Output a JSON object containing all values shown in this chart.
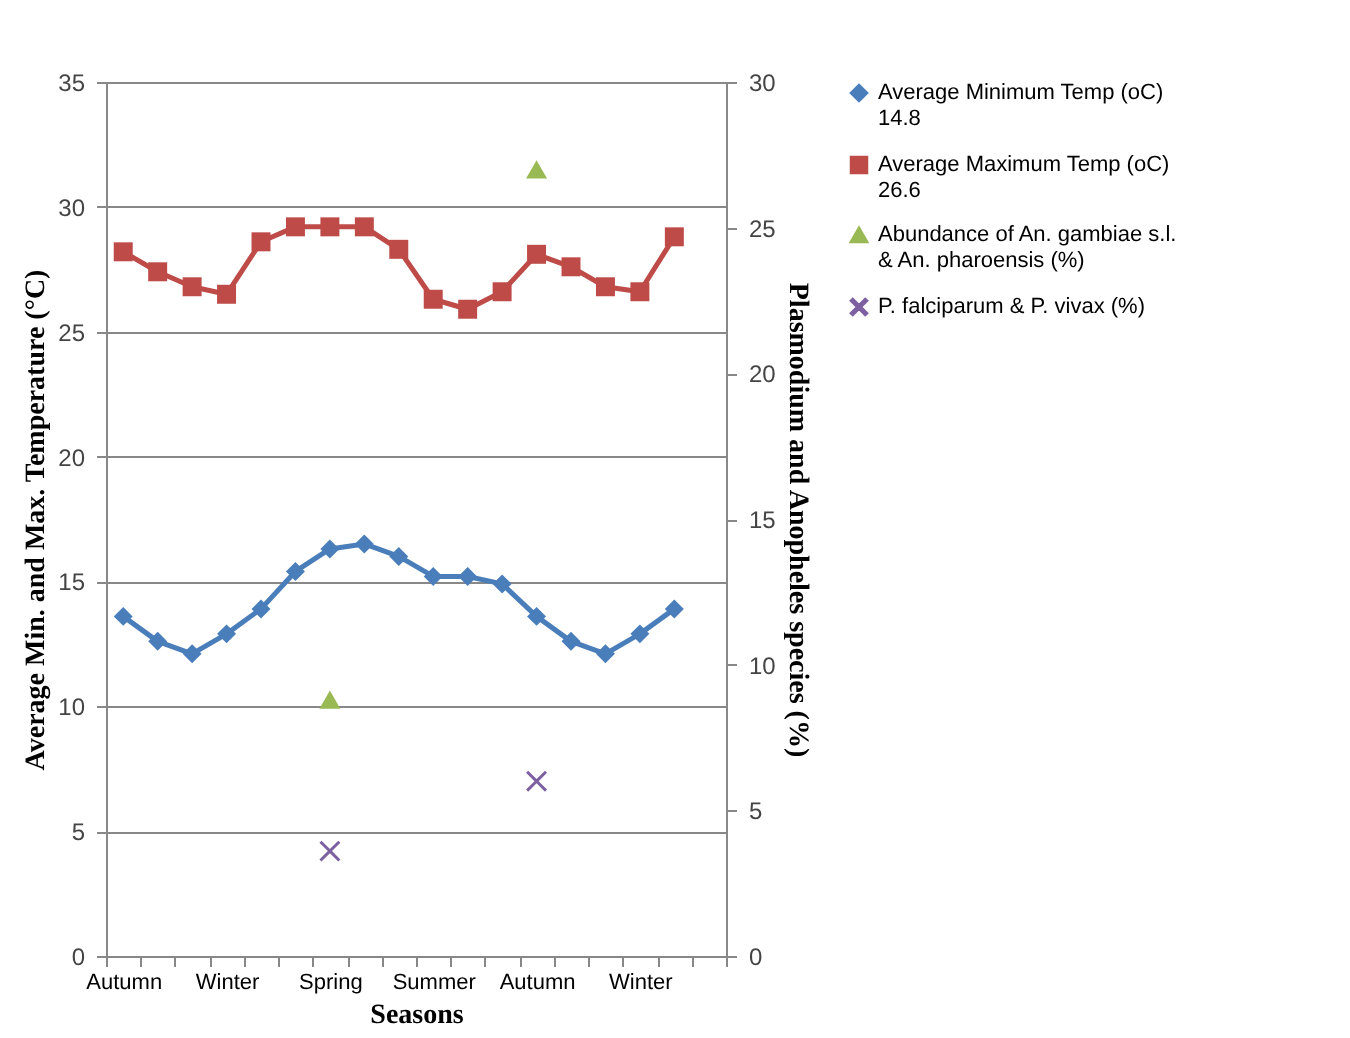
{
  "chart_data": {
    "type": "line",
    "xlabel": "Seasons",
    "ylabel": "Average Min. and Max. Temperature (°C)",
    "y2label": "Plasmodium and Anopheles species (%)",
    "categories": [
      "Autumn",
      null,
      null,
      "Winter",
      null,
      null,
      "Spring",
      null,
      null,
      "Summer",
      null,
      null,
      "Autumn",
      null,
      null,
      "Winter",
      null,
      null
    ],
    "series": [
      {
        "name": "Average Minimum Temp (oC) 14.8",
        "marker": "diamond",
        "color": "#4a7ebb",
        "values": [
          13.6,
          12.6,
          12.1,
          12.9,
          13.9,
          15.4,
          16.3,
          16.5,
          16.0,
          15.2,
          15.2,
          14.9,
          13.6,
          12.6,
          12.1,
          12.9,
          13.9,
          null
        ]
      },
      {
        "name": "Average Maximum Temp (oC) 26.6",
        "marker": "square",
        "color": "#be4b48",
        "values": [
          28.2,
          27.4,
          26.8,
          26.5,
          28.6,
          29.2,
          29.2,
          29.2,
          28.3,
          26.3,
          25.9,
          26.6,
          28.1,
          27.6,
          26.8,
          26.6,
          28.8,
          null
        ]
      },
      {
        "name": "Abundance of An. gambiae s.l. & An. pharoensis (%)",
        "type": "scatter",
        "axis": "y2",
        "marker": "triangle",
        "color": "#98b954",
        "values": [
          null,
          null,
          null,
          null,
          null,
          null,
          8.8,
          null,
          null,
          null,
          null,
          null,
          27.0,
          null,
          null,
          null,
          null,
          null
        ]
      },
      {
        "name": "P. falciparum & P. vivax (%)",
        "type": "scatter",
        "axis": "y2",
        "marker": "cross",
        "color": "#7d60a0",
        "values": [
          null,
          null,
          null,
          null,
          null,
          null,
          3.6,
          null,
          null,
          null,
          null,
          null,
          6.0,
          null,
          null,
          null,
          null,
          null
        ]
      }
    ],
    "ylim": [
      0,
      35
    ],
    "yticks": [
      0,
      5,
      10,
      15,
      20,
      25,
      30,
      35
    ],
    "y2lim": [
      0,
      30
    ],
    "y2ticks": [
      0,
      5,
      10,
      15,
      20,
      25,
      30
    ],
    "grid": "y",
    "legend": "right"
  }
}
